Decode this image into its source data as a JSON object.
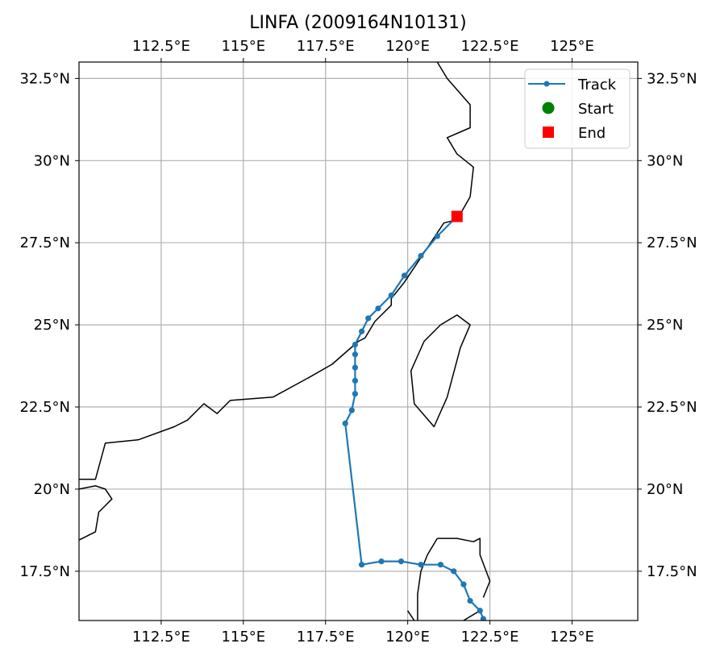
{
  "chart_data": {
    "type": "map-track",
    "title": "LINFA (2009164N10131)",
    "xlim": [
      110.0,
      127.0
    ],
    "ylim": [
      16.0,
      33.0
    ],
    "xticks": [
      {
        "value": 112.5,
        "label": "112.5°E"
      },
      {
        "value": 115,
        "label": "115°E"
      },
      {
        "value": 117.5,
        "label": "117.5°E"
      },
      {
        "value": 120,
        "label": "120°E"
      },
      {
        "value": 122.5,
        "label": "122.5°E"
      },
      {
        "value": 125,
        "label": "125°E"
      }
    ],
    "yticks": [
      {
        "value": 17.5,
        "label": "17.5°N"
      },
      {
        "value": 20,
        "label": "20°N"
      },
      {
        "value": 22.5,
        "label": "22.5°N"
      },
      {
        "value": 25,
        "label": "25°N"
      },
      {
        "value": 27.5,
        "label": "27.5°N"
      },
      {
        "value": 30,
        "label": "30°N"
      },
      {
        "value": 32.5,
        "label": "32.5°N"
      }
    ],
    "grid": true,
    "legend_position": "top-right",
    "legend": [
      {
        "key": "track",
        "label": "Track",
        "color": "#1f77b4",
        "marker": "line-dot"
      },
      {
        "key": "start",
        "label": "Start",
        "color": "#008000",
        "marker": "circle"
      },
      {
        "key": "end",
        "label": "End",
        "color": "#ff0000",
        "marker": "square"
      }
    ],
    "track": {
      "name": "Track",
      "color": "#1f77b4",
      "points": [
        [
          122.3,
          16.05
        ],
        [
          122.2,
          16.3
        ],
        [
          121.9,
          16.6
        ],
        [
          121.7,
          17.1
        ],
        [
          121.4,
          17.5
        ],
        [
          121.0,
          17.7
        ],
        [
          120.4,
          17.7
        ],
        [
          119.8,
          17.8
        ],
        [
          119.2,
          17.8
        ],
        [
          118.6,
          17.7
        ],
        [
          118.1,
          22.0
        ],
        [
          118.3,
          22.4
        ],
        [
          118.4,
          22.9
        ],
        [
          118.4,
          23.3
        ],
        [
          118.4,
          23.7
        ],
        [
          118.4,
          24.1
        ],
        [
          118.4,
          24.4
        ],
        [
          118.6,
          24.8
        ],
        [
          118.8,
          25.2
        ],
        [
          119.1,
          25.5
        ],
        [
          119.5,
          25.9
        ],
        [
          119.9,
          26.5
        ],
        [
          120.4,
          27.1
        ],
        [
          120.9,
          27.7
        ],
        [
          121.5,
          28.3
        ]
      ]
    },
    "end_point": [
      121.5,
      28.3
    ],
    "coastlines": [
      [
        [
          110.0,
          20.3
        ],
        [
          110.5,
          20.3
        ],
        [
          110.8,
          21.4
        ],
        [
          111.8,
          21.5
        ],
        [
          112.9,
          21.9
        ],
        [
          113.3,
          22.1
        ],
        [
          113.8,
          22.6
        ],
        [
          114.2,
          22.3
        ],
        [
          114.6,
          22.7
        ],
        [
          115.9,
          22.8
        ],
        [
          117.0,
          23.4
        ],
        [
          117.7,
          23.8
        ],
        [
          118.5,
          24.5
        ],
        [
          118.7,
          24.6
        ],
        [
          119.0,
          25.1
        ],
        [
          119.5,
          25.6
        ],
        [
          119.5,
          25.8
        ],
        [
          119.9,
          26.3
        ],
        [
          120.3,
          26.9
        ],
        [
          120.7,
          27.5
        ],
        [
          121.1,
          28.1
        ],
        [
          121.5,
          28.2
        ],
        [
          121.9,
          28.9
        ],
        [
          122.0,
          29.8
        ],
        [
          121.5,
          30.2
        ],
        [
          121.2,
          30.7
        ],
        [
          121.9,
          31.0
        ],
        [
          121.9,
          31.7
        ],
        [
          121.2,
          32.5
        ],
        [
          120.9,
          33.0
        ]
      ],
      [
        [
          110.0,
          20.0
        ],
        [
          110.5,
          20.1
        ],
        [
          110.8,
          20.0
        ],
        [
          111.0,
          19.7
        ],
        [
          110.6,
          19.3
        ],
        [
          110.5,
          18.7
        ],
        [
          109.9,
          18.4
        ]
      ],
      [
        [
          121.0,
          25.0
        ],
        [
          121.5,
          25.3
        ],
        [
          121.9,
          25.0
        ],
        [
          121.6,
          24.3
        ],
        [
          121.2,
          22.8
        ],
        [
          120.8,
          21.9
        ],
        [
          120.2,
          22.6
        ],
        [
          120.1,
          23.6
        ],
        [
          120.5,
          24.5
        ],
        [
          121.0,
          25.0
        ]
      ],
      [
        [
          120.9,
          18.5
        ],
        [
          121.5,
          18.5
        ],
        [
          122.0,
          18.4
        ],
        [
          122.2,
          18.5
        ],
        [
          122.2,
          18.0
        ],
        [
          122.5,
          17.2
        ],
        [
          122.3,
          16.7
        ]
      ],
      [
        [
          120.9,
          18.5
        ],
        [
          120.6,
          18.0
        ],
        [
          120.4,
          17.5
        ],
        [
          120.3,
          16.8
        ],
        [
          120.3,
          16.0
        ]
      ],
      [
        [
          120.0,
          16.3
        ],
        [
          120.2,
          16.0
        ]
      ],
      [
        [
          121.7,
          16.0
        ],
        [
          122.2,
          16.3
        ]
      ]
    ]
  }
}
